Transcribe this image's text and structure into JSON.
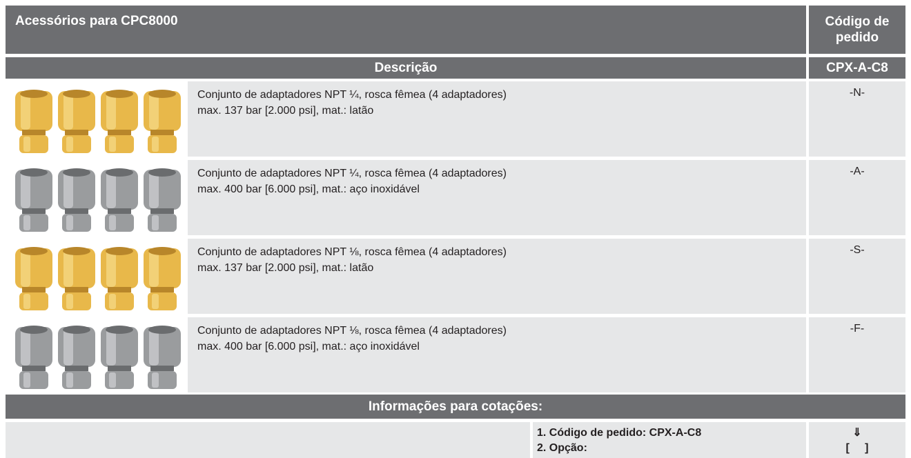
{
  "header": {
    "title": "Acessórios para CPC8000",
    "code_label": "Código de pedido"
  },
  "subheader": {
    "description_label": "Descrição",
    "code": "CPX-A-C8"
  },
  "rows": [
    {
      "line1": "Conjunto de adaptadores NPT ¼, rosca fêmea (4 adaptadores)",
      "line2": "max. 137 bar [2.000 psi], mat.: latão",
      "code": "-N-"
    },
    {
      "line1": "Conjunto de adaptadores NPT ¼, rosca fêmea (4 adaptadores)",
      "line2": "max. 400 bar [6.000 psi], mat.: aço inoxidável",
      "code": "-A-"
    },
    {
      "line1": "Conjunto de adaptadores NPT ⅛, rosca fêmea (4 adaptadores)",
      "line2": "max. 137 bar [2.000 psi], mat.: latão",
      "code": "-S-"
    },
    {
      "line1": "Conjunto de adaptadores NPT ⅛, rosca fêmea (4 adaptadores)",
      "line2": "max. 400 bar [6.000 psi], mat.: aço inoxidável",
      "code": "-F-"
    }
  ],
  "quote": {
    "title": "Informações para cotações:",
    "items": [
      "1. Código de pedido: CPX-A-C8",
      "2. Opção:"
    ],
    "arrow": "⇓",
    "bracket": "[     ]"
  }
}
